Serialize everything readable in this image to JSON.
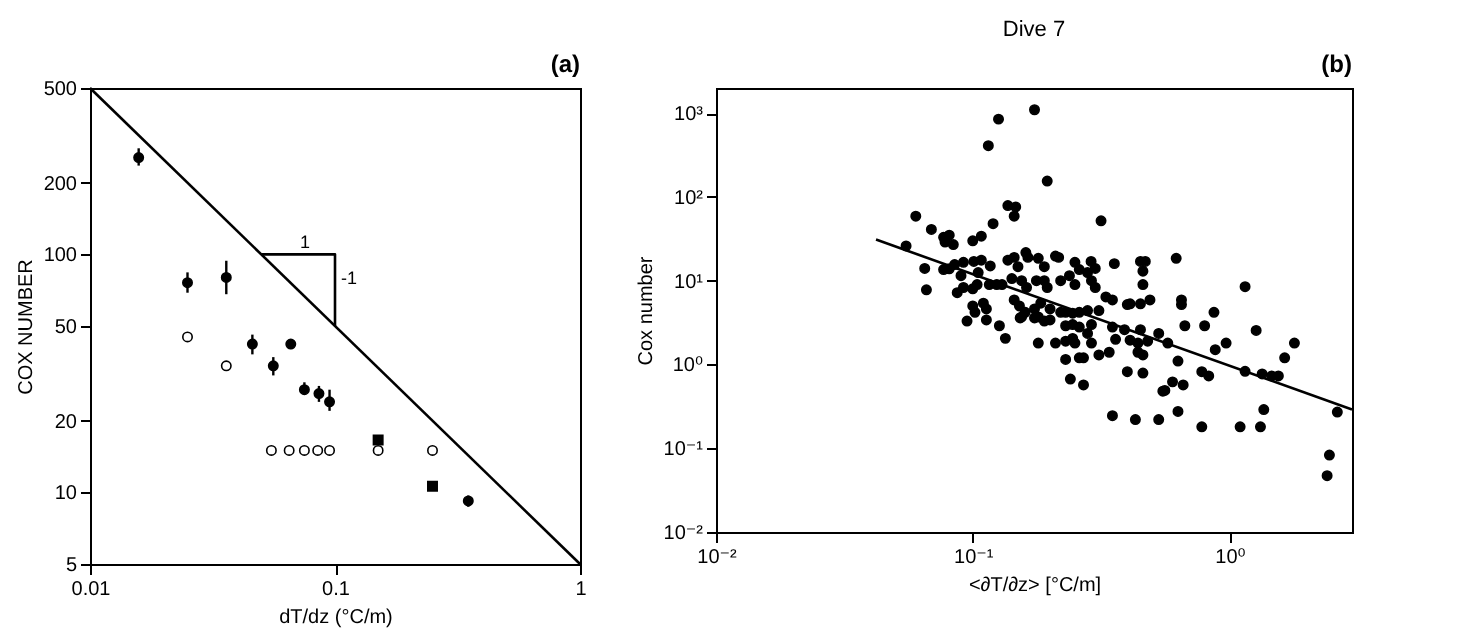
{
  "chart_data": [
    {
      "type": "scatter",
      "annotations": [
        "(a)",
        {
          "text": "1",
          "x": 0.068,
          "y": 100
        },
        {
          "text": "-1",
          "x": 0.1,
          "y": 71
        }
      ],
      "xlabel": "dT/dz (°C/m)",
      "ylabel": "COX NUMBER",
      "log": "xy",
      "grid": false,
      "xlim": [
        0.01,
        1
      ],
      "ylim": [
        5,
        500
      ],
      "xticks": [
        0.01,
        0.1,
        1
      ],
      "yticks": [
        5,
        10,
        20,
        50,
        100,
        200,
        500
      ],
      "series": [
        {
          "color": "#000000",
          "marker": "circle",
          "x": [
            0.0158,
            0.025,
            0.036,
            0.046,
            0.056,
            0.066,
            0.075,
            0.086,
            0.095,
            0.35
          ],
          "values": [
            255,
            76,
            80,
            42,
            34,
            42,
            27,
            26,
            24,
            9.2
          ],
          "errors": [
            [
              236,
              279
            ],
            [
              69,
              84
            ],
            [
              68,
              94
            ],
            [
              38,
              46
            ],
            [
              31,
              37
            ],
            [
              40,
              44
            ],
            [
              26,
              29
            ],
            [
              24,
              28
            ],
            [
              22,
              27
            ],
            [
              8.7,
              9.7
            ]
          ]
        },
        {
          "color": "#000000",
          "marker": "square",
          "x": [
            0.15,
            0.25
          ],
          "values": [
            16.6,
            10.6
          ]
        },
        {
          "color": "#ffffff",
          "marker": "circle",
          "x": [
            0.025,
            0.036,
            0.055,
            0.065,
            0.075,
            0.085,
            0.095,
            0.15,
            0.25
          ],
          "values": [
            45,
            34,
            15,
            15,
            15,
            15,
            15,
            15,
            15
          ]
        },
        {
          "type": "line",
          "color": "#000000",
          "x": [
            0.01,
            1
          ],
          "values": [
            500,
            5
          ]
        },
        {
          "type": "line",
          "color": "#000000",
          "x": [
            0.05,
            0.1,
            0.1
          ],
          "values": [
            100,
            100,
            50
          ]
        }
      ]
    },
    {
      "type": "scatter",
      "title": "Dive 7",
      "annotations": [
        "(b)"
      ],
      "xlabel": "<∂T/∂z>    [°C/m]",
      "ylabel": "Cox number",
      "log": "xy",
      "grid": false,
      "xlim": [
        0.01,
        3
      ],
      "ylim": [
        0.01,
        2000
      ],
      "xticks": [
        {
          "value": 0.01,
          "label": "10⁻²"
        },
        {
          "value": 0.1,
          "label": "10⁻¹"
        },
        {
          "value": 1,
          "label": "10⁰"
        }
      ],
      "yticks": [
        {
          "value": 0.01,
          "label": "10⁻²"
        },
        {
          "value": 0.1,
          "label": "10⁻¹"
        },
        {
          "value": 1,
          "label": "10⁰"
        },
        {
          "value": 10,
          "label": "10¹"
        },
        {
          "value": 100,
          "label": "10²"
        },
        {
          "value": 1000,
          "label": "10³"
        }
      ],
      "series": [
        {
          "color": "#000000",
          "marker": "circle",
          "x": [
            0.174,
            0.126,
            0.115,
            0.195,
            0.06,
            0.137,
            0.147,
            0.145,
            0.12,
            0.316,
            0.069,
            0.077,
            0.081,
            0.078,
            0.084,
            0.1,
            0.108,
            0.055,
            0.065,
            0.066,
            0.077,
            0.081,
            0.085,
            0.092,
            0.101,
            0.108,
            0.09,
            0.105,
            0.117,
            0.137,
            0.145,
            0.161,
            0.164,
            0.18,
            0.21,
            0.216,
            0.25,
            0.289,
            0.356,
            0.45,
            0.47,
            0.46,
            0.62,
            0.092,
            0.087,
            0.1,
            0.104,
            0.116,
            0.124,
            0.13,
            0.142,
            0.155,
            0.162,
            0.177,
            0.19,
            0.195,
            0.22,
            0.238,
            0.25,
            0.28,
            0.29,
            0.3,
            0.33,
            0.35,
            0.4,
            0.41,
            0.45,
            0.46,
            0.49,
            0.65,
            0.65,
            0.87,
            0.1,
            0.11,
            0.113,
            0.102,
            0.145,
            0.152,
            0.16,
            0.153,
            0.174,
            0.184,
            0.2,
            0.22,
            0.23,
            0.245,
            0.26,
            0.28,
            0.31,
            0.155,
            0.18,
            0.19,
            0.2,
            0.23,
            0.245,
            0.26,
            0.29,
            0.35,
            0.39,
            0.45,
            0.53,
            0.113,
            0.127,
            0.134,
            0.174,
            0.18,
            0.21,
            0.23,
            0.245,
            0.25,
            0.28,
            0.29,
            0.36,
            0.41,
            0.44,
            0.48,
            0.575,
            0.67,
            0.8,
            0.88,
            0.97,
            1.27,
            1.79,
            1.64,
            0.23,
            0.26,
            0.27,
            0.31,
            0.34,
            0.44,
            0.46,
            0.63,
            0.24,
            0.27,
            0.4,
            0.46,
            0.6,
            0.78,
            0.83,
            1.15,
            1.34,
            1.46,
            1.55,
            0.55,
            0.56,
            0.66,
            0.63,
            0.43,
            0.53,
            0.35,
            0.78,
            1.1,
            1.32,
            1.36,
            2.63,
            2.45,
            2.4,
            1.15,
            0.095,
            0.26,
            0.3,
            0.19,
            0.15
          ],
          "values": [
            1100,
            850,
            410,
            155,
            59,
            79,
            76,
            59,
            48,
            52,
            41,
            33,
            35,
            29,
            27,
            30,
            34,
            26,
            14,
            7.8,
            13.6,
            13.9,
            15.6,
            16.6,
            17,
            17.6,
            11.5,
            12.5,
            15,
            17.6,
            19,
            21.7,
            19,
            18.5,
            19.7,
            19,
            16.6,
            17,
            16,
            17,
            17,
            13,
            18.5,
            8.3,
            7.2,
            8,
            9,
            9,
            9,
            9,
            10.6,
            10,
            8.3,
            10,
            10,
            8.3,
            10,
            11.5,
            9,
            12.5,
            10,
            8.3,
            6.4,
            5.9,
            5.2,
            5.3,
            5.3,
            9,
            5.9,
            5.2,
            5.9,
            4.2,
            5,
            5.4,
            4.6,
            4.2,
            5.9,
            5,
            4.2,
            3.6,
            4.6,
            5.4,
            4.6,
            4.2,
            4.2,
            4.1,
            4.2,
            4.4,
            4.4,
            3.7,
            3.7,
            3.3,
            3.4,
            2.9,
            3,
            2.8,
            3,
            2.8,
            2.6,
            2.6,
            2.35,
            3.4,
            2.9,
            2.05,
            3.6,
            1.8,
            1.8,
            1.9,
            2.05,
            1.8,
            2.35,
            1.8,
            2,
            1.95,
            1.8,
            1.9,
            1.8,
            2.9,
            2.9,
            1.5,
            1.8,
            2.55,
            1.8,
            1.2,
            1.15,
            1.2,
            1.2,
            1.3,
            1.4,
            1.4,
            1.3,
            1.1,
            0.67,
            0.57,
            0.82,
            0.79,
            0.62,
            0.82,
            0.73,
            0.83,
            0.77,
            0.73,
            0.73,
            0.48,
            0.49,
            0.57,
            0.275,
            0.22,
            0.22,
            0.245,
            0.18,
            0.18,
            0.18,
            0.29,
            0.27,
            0.083,
            0.047,
            8.5,
            3.3,
            13.6,
            14,
            14.7,
            14.7
          ]
        },
        {
          "type": "line",
          "color": "#000000",
          "x": [
            0.042,
            3
          ],
          "values": [
            31,
            0.29
          ]
        }
      ]
    }
  ]
}
